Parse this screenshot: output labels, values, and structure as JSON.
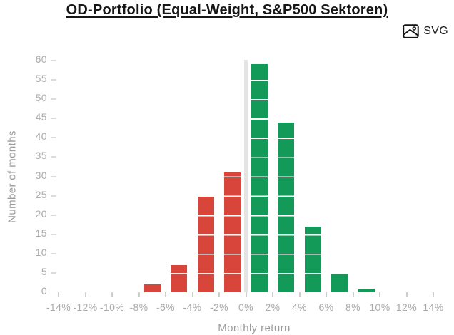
{
  "title": "OD-Portfolio (Equal-Weight, S&P500 Sektoren)",
  "toolbar": {
    "svg_label": "SVG"
  },
  "chart_data": {
    "type": "bar",
    "title": "OD-Portfolio (Equal-Weight, S&P500 Sektoren)",
    "xlabel": "Monthly return",
    "ylabel": "Number of months",
    "bin_width_pct": 2,
    "bins": [
      {
        "center_pct": -7,
        "count": 2
      },
      {
        "center_pct": -5,
        "count": 7
      },
      {
        "center_pct": -3,
        "count": 25
      },
      {
        "center_pct": -1,
        "count": 31
      },
      {
        "center_pct": 1,
        "count": 59
      },
      {
        "center_pct": 3,
        "count": 44
      },
      {
        "center_pct": 5,
        "count": 17
      },
      {
        "center_pct": 7,
        "count": 5
      },
      {
        "center_pct": 9,
        "count": 1
      }
    ],
    "x_ticks": [
      "-14%",
      "-12%",
      "-10%",
      "-8%",
      "-6%",
      "-4%",
      "-2%",
      "0%",
      "2%",
      "4%",
      "6%",
      "8%",
      "10%",
      "12%",
      "14%"
    ],
    "y_ticks": [
      0,
      5,
      10,
      15,
      20,
      25,
      30,
      35,
      40,
      45,
      50,
      55,
      60
    ],
    "ylim": [
      0,
      60
    ],
    "block_size": 5,
    "grid": "off",
    "legend": "none",
    "colors": {
      "negative": "#d8453a",
      "positive": "#149a58",
      "zero_line": "#e4e4e4",
      "block_separator": "rgba(255,255,255,0.85)",
      "tick_text": "#aaaaae",
      "axis_title_text": "#9b9b9b",
      "title_text": "#161616"
    }
  }
}
